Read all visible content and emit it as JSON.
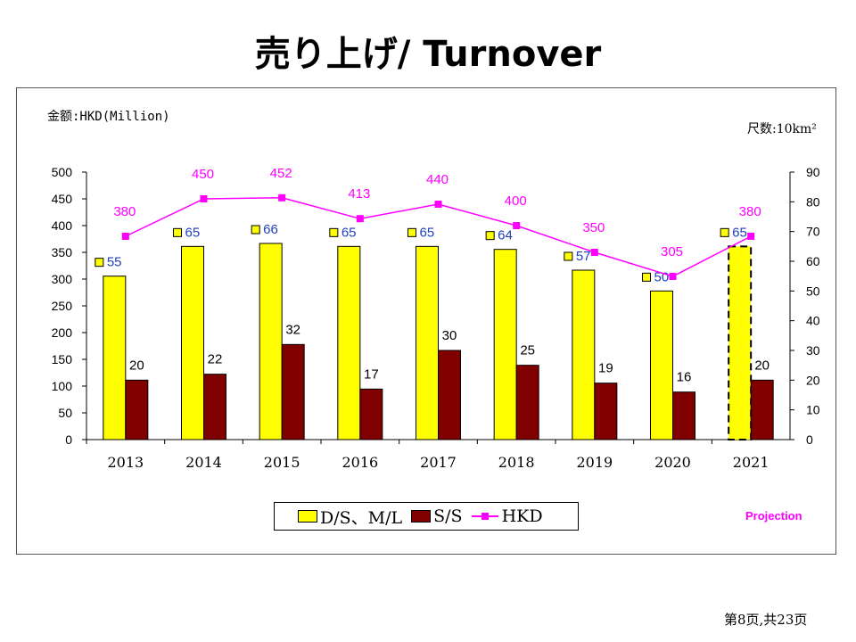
{
  "title": "売り上げ/ Turnover",
  "unit_left": "金额:HKD(Million)",
  "unit_right": "尺数:10km²",
  "projection_label": "Projection",
  "page_number": "第8页,共23页",
  "colors": {
    "ds_ml": "#ffff00",
    "ss": "#800000",
    "hkd": "#ff00ff",
    "label_blue": "#1f3fbf"
  },
  "legend": {
    "ds_ml": "D/S、M/L",
    "ss": "S/S",
    "hkd": "HKD"
  },
  "chart_data": {
    "type": "bar",
    "categories": [
      "2013",
      "2014",
      "2015",
      "2016",
      "2017",
      "2018",
      "2019",
      "2020",
      "2021"
    ],
    "series": [
      {
        "name": "D/S、M/L",
        "axis": "right",
        "type": "bar",
        "values": [
          55,
          65,
          66,
          65,
          65,
          64,
          57,
          50,
          65
        ]
      },
      {
        "name": "S/S",
        "axis": "right",
        "type": "bar",
        "values": [
          20,
          22,
          32,
          17,
          30,
          25,
          19,
          16,
          20
        ]
      },
      {
        "name": "HKD",
        "axis": "left",
        "type": "line",
        "values": [
          380,
          450,
          452,
          413,
          440,
          400,
          350,
          305,
          380
        ]
      }
    ],
    "left_axis": {
      "min": 0,
      "max": 500,
      "step": 50
    },
    "right_axis": {
      "min": 0,
      "max": 90,
      "step": 10
    },
    "projection_category": "2021",
    "grid": false,
    "legend_position": "bottom"
  }
}
